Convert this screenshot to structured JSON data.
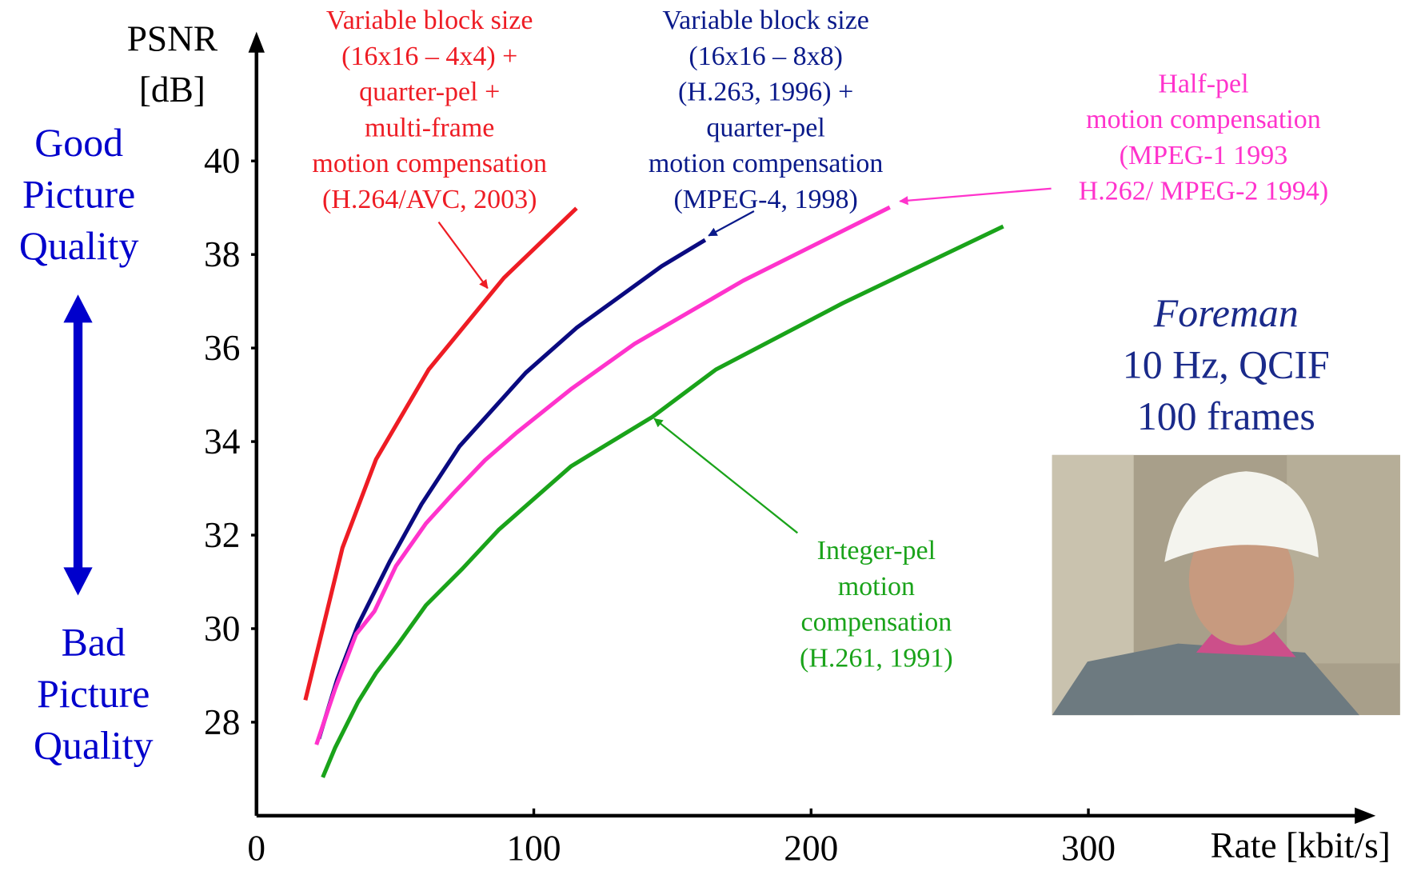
{
  "chart_data": {
    "type": "line",
    "y_label_lines": [
      "PSNR",
      "[dB]"
    ],
    "x_label": "Rate [kbit/s]",
    "xlim": [
      0,
      401
    ],
    "ylim": [
      26,
      42.7
    ],
    "xticks": [
      0,
      100,
      200,
      300
    ],
    "yticks": [
      28,
      30,
      32,
      34,
      36,
      38,
      40
    ],
    "series": [
      {
        "color": "#ee1c24",
        "x": [
          17.6,
          31.0,
          43.1,
          62.1,
          89.2,
          115.4
        ],
        "values": [
          28.47,
          31.73,
          33.62,
          35.54,
          37.5,
          38.99
        ]
      },
      {
        "color": "#0a0a80",
        "x": [
          22.5,
          29.1,
          36.6,
          48.0,
          59.5,
          73.2,
          97.1,
          115.4,
          146.1,
          161.8
        ],
        "values": [
          27.65,
          28.91,
          30.08,
          31.43,
          32.66,
          33.9,
          35.47,
          36.43,
          37.75,
          38.31
        ]
      },
      {
        "color": "#ff33cc",
        "x": [
          21.6,
          28.4,
          35.9,
          42.5,
          50.3,
          61.1,
          70.9,
          82.4,
          93.8,
          113.4,
          136.3,
          175.5,
          228.4
        ],
        "values": [
          27.52,
          28.72,
          29.88,
          30.37,
          31.34,
          32.25,
          32.89,
          33.6,
          34.19,
          35.12,
          36.09,
          37.44,
          39.01
        ]
      },
      {
        "color": "#1aa31a",
        "x": [
          23.9,
          28.4,
          36.6,
          43.1,
          51.3,
          61.1,
          74.2,
          87.3,
          113.4,
          142.8,
          165.7,
          211.4,
          269.3
        ],
        "values": [
          26.82,
          27.46,
          28.43,
          29.05,
          29.69,
          30.5,
          31.28,
          32.11,
          33.47,
          34.53,
          35.54,
          36.96,
          38.6
        ]
      }
    ],
    "annotations": [
      {
        "color": "#ee1c24",
        "lines": [
          "Variable block size",
          "(16x16 – 4x4) +",
          "quarter-pel +",
          "multi-frame",
          "motion compensation",
          "(H.264/AVC, 2003)"
        ]
      },
      {
        "color": "#0a1a8a",
        "lines": [
          "Variable block size",
          "(16x16 – 8x8)",
          "(H.263, 1996) +",
          "quarter-pel",
          "motion compensation",
          "(MPEG-4, 1998)"
        ]
      },
      {
        "color": "#ff33cc",
        "lines": [
          "Half-pel",
          "motion compensation",
          "(MPEG-1 1993",
          "H.262/ MPEG-2 1994)"
        ]
      },
      {
        "color": "#1aa31a",
        "lines": [
          "Integer-pel",
          "motion",
          "compensation",
          "(H.261, 1991)"
        ]
      }
    ],
    "sequence_info": {
      "color": "#1a2a8a",
      "name": "Foreman",
      "lines": [
        "10 Hz, QCIF",
        "100 frames"
      ]
    },
    "quality_labels": {
      "color": "#0000cc",
      "good": [
        "Good",
        "Picture",
        "Quality"
      ],
      "bad": [
        "Bad",
        "Picture",
        "Quality"
      ]
    }
  }
}
